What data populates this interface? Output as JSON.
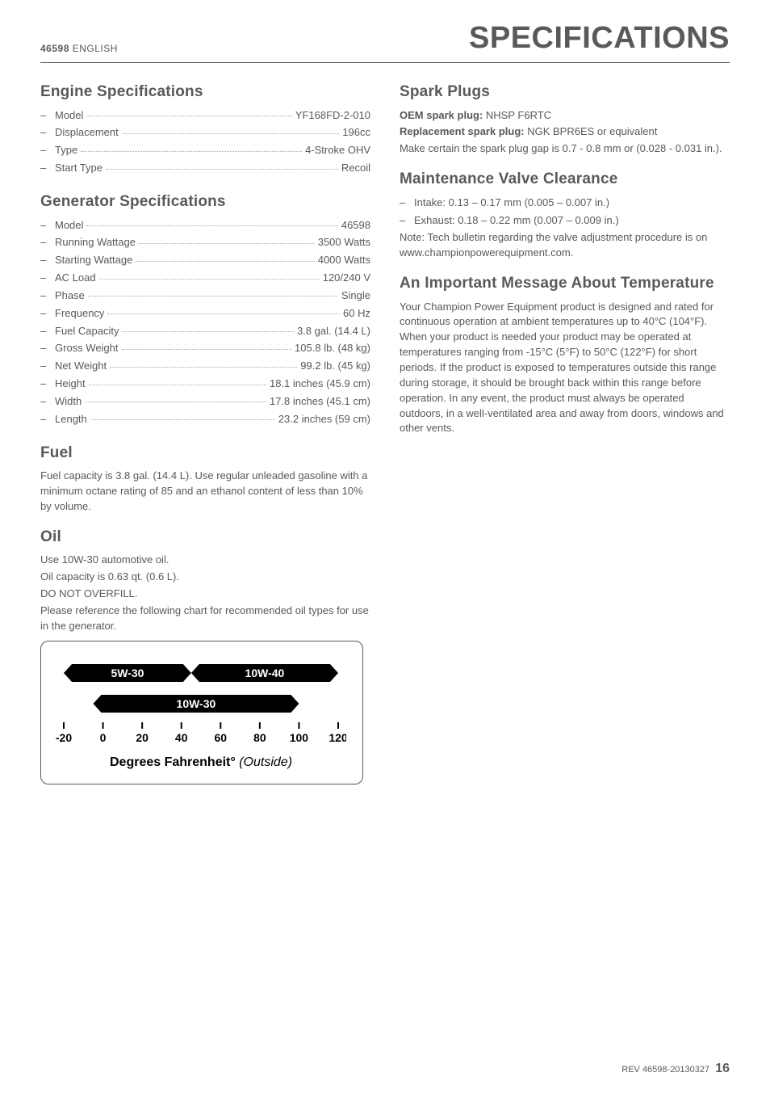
{
  "header": {
    "model_no": "46598",
    "lang": "ENGLISH",
    "title": "SPECIFICATIONS"
  },
  "left": {
    "engine": {
      "heading": "Engine Specifications",
      "rows": [
        {
          "label": "Model",
          "value": "YF168FD-2-010"
        },
        {
          "label": "Displacement",
          "value": "196cc"
        },
        {
          "label": "Type",
          "value": "4-Stroke OHV"
        },
        {
          "label": "Start Type",
          "value": "Recoil"
        }
      ]
    },
    "generator": {
      "heading": "Generator Specifications",
      "rows": [
        {
          "label": "Model",
          "value": "46598"
        },
        {
          "label": "Running Wattage",
          "value": "3500 Watts"
        },
        {
          "label": "Starting Wattage",
          "value": "4000 Watts"
        },
        {
          "label": "AC Load",
          "value": "120/240 V"
        },
        {
          "label": "Phase",
          "value": "Single"
        },
        {
          "label": "Frequency",
          "value": "60 Hz"
        },
        {
          "label": "Fuel Capacity",
          "value": "3.8 gal. (14.4 L)"
        },
        {
          "label": "Gross Weight",
          "value": "105.8 lb. (48 kg)"
        },
        {
          "label": "Net Weight",
          "value": "99.2 lb. (45 kg)"
        },
        {
          "label": "Height",
          "value": "18.1 inches (45.9 cm)"
        },
        {
          "label": "Width",
          "value": "17.8 inches (45.1 cm)"
        },
        {
          "label": "Length",
          "value": "23.2 inches (59 cm)"
        }
      ]
    },
    "fuel": {
      "heading": "Fuel",
      "body": "Fuel capacity is 3.8 gal. (14.4 L). Use regular unleaded gasoline with a minimum octane rating of 85 and an ethanol content of less than 10% by volume."
    },
    "oil": {
      "heading": "Oil",
      "line1": "Use 10W-30 automotive oil.",
      "line2": "Oil capacity is 0.63 qt. (0.6 L).",
      "line3": "DO NOT OVERFILL.",
      "line4": "Please reference the following chart for recommended oil types for use in the generator."
    },
    "chart": {
      "axis_label": "Degrees Fahrenheit°",
      "axis_label_italic": "(Outside)",
      "xmin": -20,
      "xmax": 120,
      "xtick_step": 20,
      "ticks": [
        "-20",
        "0",
        "20",
        "40",
        "60",
        "80",
        "100",
        "120"
      ],
      "bars": [
        {
          "name": "5W-30",
          "start": -20,
          "end": 45,
          "row": 0,
          "label_inside": true
        },
        {
          "name": "10W-40",
          "start": 45,
          "end": 120,
          "row": 0,
          "label_inside": true
        },
        {
          "name": "10W-30",
          "start": -5,
          "end": 100,
          "row": 1,
          "label_inside": true
        }
      ],
      "bar_color": "#000000",
      "bar_text_color": "#ffffff",
      "text_color": "#000000"
    }
  },
  "right": {
    "spark": {
      "heading": "Spark Plugs",
      "oem_label": "OEM spark plug:",
      "oem_value": " NHSP F6RTC",
      "repl_label": "Replacement spark plug:",
      "repl_value": " NGK BPR6ES or equivalent",
      "gap": "Make certain the spark plug gap is 0.7 - 0.8 mm or (0.028 - 0.031 in.)."
    },
    "valve": {
      "heading": "Maintenance Valve Clearance",
      "intake": "Intake: 0.13 – 0.17 mm (0.005 – 0.007 in.)",
      "exhaust": "Exhaust: 0.18 – 0.22 mm (0.007 – 0.009 in.)",
      "note": "Note: Tech bulletin regarding the valve adjustment procedure is on www.championpowerequipment.com."
    },
    "temp": {
      "heading": "An Important Message About Temperature",
      "body": "Your Champion Power Equipment product is designed and rated for continuous operation at ambient temperatures up to 40°C (104°F). When your product is needed your product may be operated at temperatures ranging from -15°C (5°F) to 50°C (122°F) for short periods. If the product is exposed to temperatures outside this range during storage, it should be brought back within this range before operation. In any event, the product must always be operated outdoors, in a well-ventilated area and away from doors, windows and other vents."
    }
  },
  "footer": {
    "rev": "REV 46598-20130327",
    "page": "16"
  }
}
